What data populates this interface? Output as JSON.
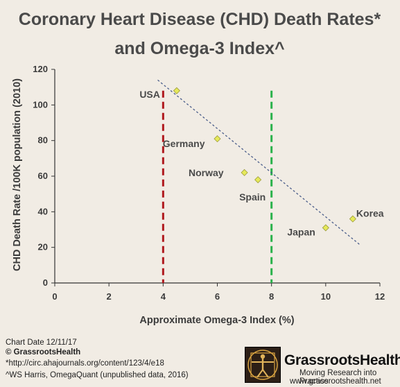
{
  "chart_data": {
    "type": "scatter",
    "title_line1": "Coronary Heart Disease (CHD) Death Rates*",
    "title_line2": "and Omega-3 Index^",
    "xlabel": "Approximate Omega-3 Index (%)",
    "ylabel": "CHD Death Rate /100K population (2010)",
    "xlim": [
      0,
      12
    ],
    "ylim": [
      0,
      120
    ],
    "xticks": [
      "0",
      "2",
      "4",
      "6",
      "8",
      "10",
      "12"
    ],
    "yticks": [
      "0",
      "20",
      "40",
      "60",
      "80",
      "100",
      "120"
    ],
    "grid": false,
    "points": [
      {
        "label": "USA",
        "x": 4.5,
        "y": 108
      },
      {
        "label": "Germany",
        "x": 6.0,
        "y": 81
      },
      {
        "label": "Norway",
        "x": 7.0,
        "y": 62
      },
      {
        "label": "Spain",
        "x": 7.5,
        "y": 58
      },
      {
        "label": "Japan",
        "x": 10.0,
        "y": 31
      },
      {
        "label": "Korea",
        "x": 11.0,
        "y": 36
      }
    ],
    "trendline": {
      "x": [
        3.8,
        11.3
      ],
      "y": [
        114,
        21
      ],
      "style": "dotted",
      "color": "#4a5d8a"
    },
    "reference_lines": [
      {
        "x": 4,
        "color": "#b0191e",
        "style": "dashed"
      },
      {
        "x": 8,
        "color": "#2bb24c",
        "style": "dashed"
      }
    ],
    "point_color": "#e6e95a"
  },
  "footer": {
    "chart_date": "Chart Date 12/11/17",
    "copyright": "© GrassrootsHealth",
    "source1": "*http://circ.ahajournals.org/content/123/4/e18",
    "source2": "^WS Harris,  OmegaQuant  (unpublished data, 2016)"
  },
  "brand": {
    "name": "GrassrootsHealth",
    "tagline": "Moving Research into Practice",
    "url": "www.grassrootshealth.net"
  }
}
